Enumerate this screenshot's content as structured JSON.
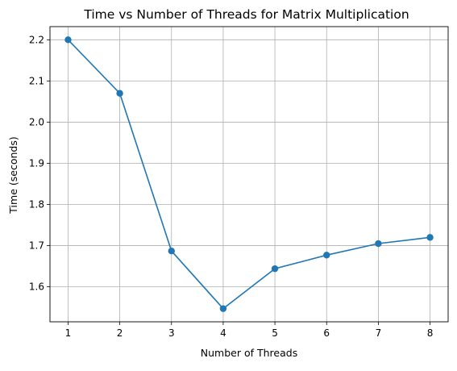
{
  "chart_data": {
    "type": "line",
    "title": "Time vs Number of Threads for Matrix Multiplication",
    "xlabel": "Number of Threads",
    "ylabel": "Time (seconds)",
    "x": [
      1,
      2,
      3,
      4,
      5,
      6,
      7,
      8
    ],
    "x_ticks": [
      "1",
      "2",
      "3",
      "4",
      "5",
      "6",
      "7",
      "8"
    ],
    "y_ticks": [
      "1.6",
      "1.7",
      "1.8",
      "1.9",
      "2.0",
      "2.1",
      "2.2"
    ],
    "xlim": [
      0.65,
      8.35
    ],
    "ylim": [
      1.515,
      2.232
    ],
    "grid": true,
    "series": [
      {
        "color": "#1f77b4",
        "marker": "circle",
        "values": [
          2.2,
          2.07,
          1.687,
          1.547,
          1.644,
          1.677,
          1.705,
          1.72
        ]
      }
    ]
  }
}
